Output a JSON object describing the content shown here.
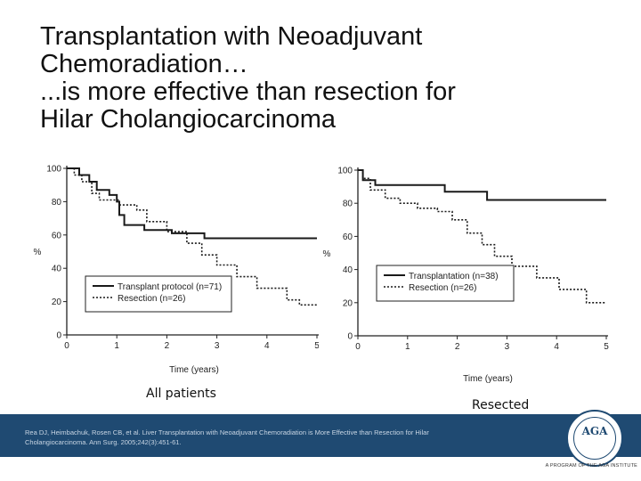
{
  "title_lines": [
    "Transplantation with Neoadjuvant",
    "Chemoradiation…",
    "...is more effective than resection for",
    "Hilar Cholangiocarcinoma"
  ],
  "chart_data": [
    {
      "type": "line",
      "subtitle": "All patients",
      "xlabel": "Time (years)",
      "ylabel": "%",
      "xlim": [
        0,
        5
      ],
      "ylim": [
        0,
        100
      ],
      "xticks": [
        "0",
        "1",
        "2",
        "3",
        "4",
        "5"
      ],
      "yticks": [
        "0",
        "20",
        "40",
        "60",
        "80",
        "100"
      ],
      "legend_position": "lower-left",
      "series": [
        {
          "name": "Transplant protocol (n=71)",
          "style": "solid",
          "points": [
            [
              0,
              100
            ],
            [
              0.25,
              100
            ],
            [
              0.25,
              96
            ],
            [
              0.45,
              96
            ],
            [
              0.45,
              92
            ],
            [
              0.6,
              92
            ],
            [
              0.6,
              87
            ],
            [
              0.85,
              87
            ],
            [
              0.85,
              84
            ],
            [
              1.0,
              84
            ],
            [
              1.0,
              80
            ],
            [
              1.05,
              80
            ],
            [
              1.05,
              72
            ],
            [
              1.15,
              72
            ],
            [
              1.15,
              66
            ],
            [
              1.55,
              66
            ],
            [
              1.55,
              63
            ],
            [
              2.1,
              63
            ],
            [
              2.1,
              61
            ],
            [
              2.75,
              61
            ],
            [
              2.75,
              58
            ],
            [
              5.0,
              58
            ]
          ]
        },
        {
          "name": "Resection (n=26)",
          "style": "dotted",
          "points": [
            [
              0,
              100
            ],
            [
              0.15,
              100
            ],
            [
              0.15,
              96
            ],
            [
              0.3,
              96
            ],
            [
              0.3,
              92
            ],
            [
              0.5,
              92
            ],
            [
              0.5,
              85
            ],
            [
              0.65,
              85
            ],
            [
              0.65,
              81
            ],
            [
              1.05,
              81
            ],
            [
              1.05,
              78
            ],
            [
              1.4,
              78
            ],
            [
              1.4,
              75
            ],
            [
              1.6,
              75
            ],
            [
              1.6,
              68
            ],
            [
              2.0,
              68
            ],
            [
              2.0,
              62
            ],
            [
              2.4,
              62
            ],
            [
              2.4,
              55
            ],
            [
              2.7,
              55
            ],
            [
              2.7,
              48
            ],
            [
              3.0,
              48
            ],
            [
              3.0,
              42
            ],
            [
              3.4,
              42
            ],
            [
              3.4,
              35
            ],
            [
              3.8,
              35
            ],
            [
              3.8,
              28
            ],
            [
              4.4,
              28
            ],
            [
              4.4,
              21
            ],
            [
              4.65,
              21
            ],
            [
              4.65,
              18
            ],
            [
              5.0,
              18
            ]
          ]
        }
      ]
    },
    {
      "type": "line",
      "subtitle": "Resected",
      "xlabel": "Time (years)",
      "ylabel": "%",
      "xlim": [
        0,
        5
      ],
      "ylim": [
        0,
        100
      ],
      "xticks": [
        "0",
        "1",
        "2",
        "3",
        "4",
        "5"
      ],
      "yticks": [
        "0",
        "20",
        "40",
        "60",
        "80",
        "100"
      ],
      "legend_position": "center-right",
      "series": [
        {
          "name": "Transplantation (n=38)",
          "style": "solid",
          "points": [
            [
              0,
              100
            ],
            [
              0.1,
              100
            ],
            [
              0.1,
              94
            ],
            [
              0.35,
              94
            ],
            [
              0.35,
              91
            ],
            [
              1.75,
              91
            ],
            [
              1.75,
              87
            ],
            [
              2.6,
              87
            ],
            [
              2.6,
              82
            ],
            [
              5.0,
              82
            ]
          ]
        },
        {
          "name": "Resection (n=26)",
          "style": "dotted",
          "points": [
            [
              0,
              100
            ],
            [
              0.1,
              100
            ],
            [
              0.1,
              95
            ],
            [
              0.25,
              95
            ],
            [
              0.25,
              88
            ],
            [
              0.55,
              88
            ],
            [
              0.55,
              83
            ],
            [
              0.85,
              83
            ],
            [
              0.85,
              80
            ],
            [
              1.2,
              80
            ],
            [
              1.2,
              77
            ],
            [
              1.6,
              77
            ],
            [
              1.6,
              75
            ],
            [
              1.9,
              75
            ],
            [
              1.9,
              70
            ],
            [
              2.2,
              70
            ],
            [
              2.2,
              62
            ],
            [
              2.5,
              62
            ],
            [
              2.5,
              55
            ],
            [
              2.75,
              55
            ],
            [
              2.75,
              48
            ],
            [
              3.1,
              48
            ],
            [
              3.1,
              42
            ],
            [
              3.6,
              42
            ],
            [
              3.6,
              35
            ],
            [
              4.05,
              35
            ],
            [
              4.05,
              28
            ],
            [
              4.6,
              28
            ],
            [
              4.6,
              20
            ],
            [
              5.0,
              20
            ]
          ]
        }
      ]
    }
  ],
  "citation": "Rea DJ, Heimbachuk, Rosen CB, et al. Liver Transplantation with Neoadjuvant Chemoradiation is More Effective than Resection for Hilar Cholangiocarcinoma. Ann Surg. 2005;242(3):451-61.",
  "footer": {
    "logo_text": "AGA",
    "tagline": "A PROGRAM OF THE AGA INSTITUTE",
    "brand_color": "#1f4a72"
  }
}
